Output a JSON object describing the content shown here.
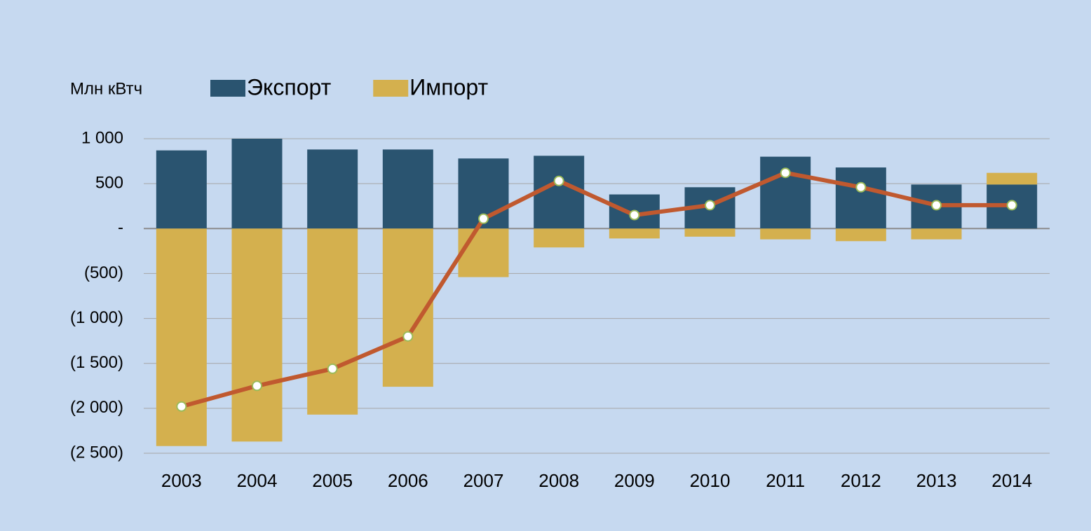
{
  "chart_data": {
    "type": "bar-line",
    "ylabel": "Млн кВтч",
    "categories": [
      "2003",
      "2004",
      "2005",
      "2006",
      "2007",
      "2008",
      "2009",
      "2010",
      "2011",
      "2012",
      "2013",
      "2014"
    ],
    "series": [
      {
        "name": "Экспорт",
        "color": "#2a5470",
        "type": "bar",
        "values": [
          870,
          1000,
          880,
          880,
          780,
          810,
          380,
          460,
          800,
          680,
          490,
          490
        ]
      },
      {
        "name": "Импорт",
        "color": "#d4b04e",
        "type": "bar",
        "values": [
          -2420,
          -2370,
          -2070,
          -1760,
          -540,
          -210,
          -110,
          -90,
          -120,
          -140,
          -120,
          130
        ]
      },
      {
        "color": "#c0592f",
        "type": "line",
        "marker_color": "#9bbb59",
        "values": [
          -1980,
          -1750,
          -1560,
          -1200,
          110,
          530,
          150,
          260,
          620,
          460,
          260,
          260
        ]
      }
    ],
    "ylim": [
      -2500,
      1000
    ],
    "yticks": [
      {
        "value": 1000,
        "label": "1 000"
      },
      500,
      {
        "value": 0,
        "label": "-"
      },
      {
        "value": -500,
        "label": "(500)"
      },
      {
        "value": -1000,
        "label": "(1 000)"
      },
      {
        "value": -1500,
        "label": "(1 500)"
      },
      {
        "value": -2000,
        "label": "(2 000)"
      },
      {
        "value": -2500,
        "label": "(2 500)"
      }
    ],
    "grid": true,
    "legend": "top"
  }
}
